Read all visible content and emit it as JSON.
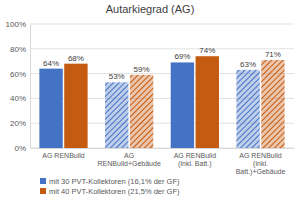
{
  "chart_data": {
    "type": "bar",
    "title": "Autarkiegrad (AG)",
    "categories": [
      "AG RENBuild",
      "AG RENBuild+Gebäude",
      "AG RENBuild (inkl. Batt.)",
      "AG RENBuild (inkl. Batt.)+Gebäude"
    ],
    "series": [
      {
        "name": "mit 30 PVT-Kollektoren (16,1% der GF)",
        "color": "#4472c4",
        "values": [
          64,
          53,
          69,
          63
        ],
        "value_labels": [
          "64%",
          "53%",
          "69%",
          "63%"
        ]
      },
      {
        "name": "mit 40 PVT-Kollektoren (21,5% der GF)",
        "color": "#c55a11",
        "values": [
          68,
          59,
          74,
          71
        ],
        "value_labels": [
          "68%",
          "59%",
          "74%",
          "71%"
        ]
      }
    ],
    "ylim": [
      0,
      100
    ],
    "yticks": [
      {
        "value": 0,
        "label": "0%"
      },
      {
        "value": 20,
        "label": "20%"
      },
      {
        "value": 40,
        "label": "40%"
      },
      {
        "value": 60,
        "label": "60%"
      },
      {
        "value": 80,
        "label": "80%"
      },
      {
        "value": 100,
        "label": "100%"
      }
    ],
    "grid": true,
    "data_labels": true,
    "legend": "bottom"
  }
}
